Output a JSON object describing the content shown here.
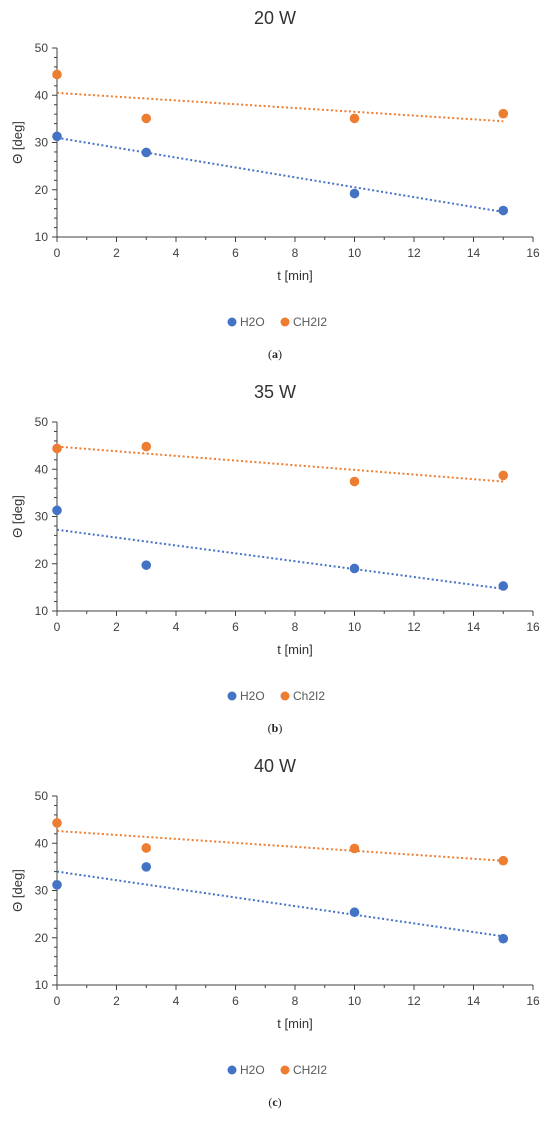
{
  "colors": {
    "h2o": "#4472C4",
    "ch2i2": "#ED7D31",
    "axis": "#404040"
  },
  "chart_data": [
    {
      "type": "scatter",
      "title": "20 W",
      "xlabel": "t [min]",
      "ylabel": "Θ [deg]",
      "xlim": [
        0,
        16
      ],
      "ylim": [
        10,
        50
      ],
      "xticks": [
        0,
        2,
        4,
        6,
        8,
        10,
        12,
        14,
        16
      ],
      "yticks": [
        10,
        20,
        30,
        40,
        50
      ],
      "grid": false,
      "legend_position": "bottom",
      "caption": "a",
      "series": [
        {
          "name": "H2O",
          "color": "#4472C4",
          "points": [
            [
              0,
              31.3
            ],
            [
              3,
              27.9
            ],
            [
              10,
              19.2
            ],
            [
              15,
              15.6
            ]
          ],
          "trendline": [
            [
              0,
              31.0
            ],
            [
              15,
              15.3
            ]
          ]
        },
        {
          "name": "CH2I2",
          "color": "#ED7D31",
          "points": [
            [
              0,
              44.4
            ],
            [
              3,
              35.1
            ],
            [
              10,
              35.1
            ],
            [
              15,
              36.1
            ]
          ],
          "trendline": [
            [
              0,
              40.5
            ],
            [
              15,
              34.5
            ]
          ]
        }
      ]
    },
    {
      "type": "scatter",
      "title": "35 W",
      "xlabel": "t [min]",
      "ylabel": "Θ [deg]",
      "xlim": [
        0,
        16
      ],
      "ylim": [
        10,
        50
      ],
      "xticks": [
        0,
        2,
        4,
        6,
        8,
        10,
        12,
        14,
        16
      ],
      "yticks": [
        10,
        20,
        30,
        40,
        50
      ],
      "grid": false,
      "legend_position": "bottom",
      "caption": "b",
      "series": [
        {
          "name": "H2O",
          "color": "#4472C4",
          "points": [
            [
              0,
              31.3
            ],
            [
              3,
              19.7
            ],
            [
              10,
              19.0
            ],
            [
              15,
              15.3
            ]
          ],
          "trendline": [
            [
              0,
              27.2
            ],
            [
              15,
              14.7
            ]
          ]
        },
        {
          "name": "Ch2I2",
          "color": "#ED7D31",
          "points": [
            [
              0,
              44.4
            ],
            [
              3,
              44.8
            ],
            [
              10,
              37.4
            ],
            [
              15,
              38.7
            ]
          ],
          "trendline": [
            [
              0,
              44.8
            ],
            [
              15,
              37.4
            ]
          ]
        }
      ]
    },
    {
      "type": "scatter",
      "title": "40 W",
      "xlabel": "t [min]",
      "ylabel": "Θ [deg]",
      "xlim": [
        0,
        16
      ],
      "ylim": [
        10,
        50
      ],
      "xticks": [
        0,
        2,
        4,
        6,
        8,
        10,
        12,
        14,
        16
      ],
      "yticks": [
        10,
        20,
        30,
        40,
        50
      ],
      "grid": false,
      "legend_position": "bottom",
      "caption": "c",
      "series": [
        {
          "name": "H2O",
          "color": "#4472C4",
          "points": [
            [
              0,
              31.2
            ],
            [
              3,
              35.0
            ],
            [
              10,
              25.4
            ],
            [
              15,
              19.8
            ]
          ],
          "trendline": [
            [
              0,
              34.0
            ],
            [
              15,
              20.3
            ]
          ]
        },
        {
          "name": "CH2I2",
          "color": "#ED7D31",
          "points": [
            [
              0,
              44.3
            ],
            [
              3,
              39.0
            ],
            [
              10,
              38.9
            ],
            [
              15,
              36.3
            ]
          ],
          "trendline": [
            [
              0,
              42.6
            ],
            [
              15,
              36.3
            ]
          ]
        }
      ]
    }
  ]
}
